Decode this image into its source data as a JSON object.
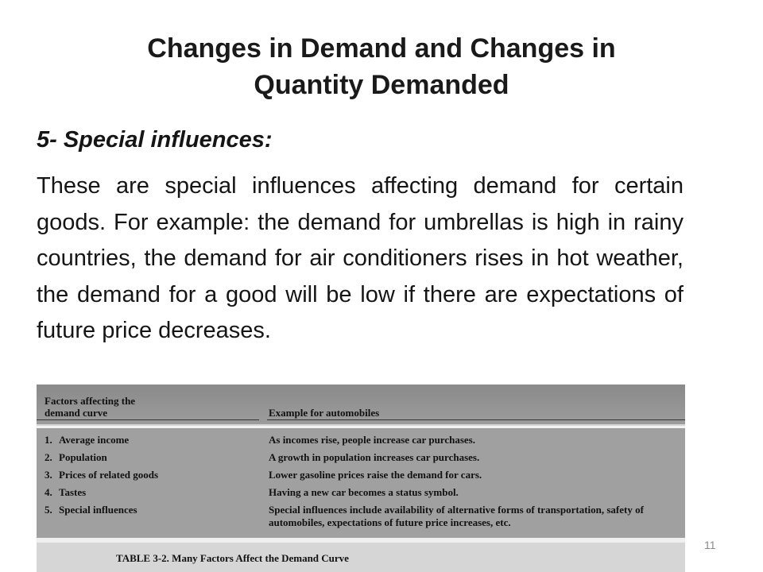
{
  "slide": {
    "title_line1": "Changes in Demand and Changes in",
    "title_line2": "Quantity Demanded",
    "subheading": "5- Special influences:",
    "body": "These are special influences affecting demand for certain goods. For example: the demand for umbrellas is high in rainy countries, the demand for air conditioners rises in hot weather, the demand for a good will be low if there are expectations of future price decreases.",
    "page_number": "11"
  },
  "table": {
    "header_factor_line1": "Factors affecting the",
    "header_factor_line2": "demand curve",
    "header_example": "Example for automobiles",
    "rows": [
      {
        "num": "1.",
        "factor": "Average income",
        "example": "As incomes rise, people increase car purchases."
      },
      {
        "num": "2.",
        "factor": "Population",
        "example": "A growth in population increases car purchases."
      },
      {
        "num": "3.",
        "factor": "Prices of related goods",
        "example": "Lower gasoline prices raise the demand for cars."
      },
      {
        "num": "4.",
        "factor": "Tastes",
        "example": "Having a new car becomes a status symbol."
      },
      {
        "num": "5.",
        "factor": "Special influences",
        "example": "Special influences include availability of alternative forms of transportation, safety of automobiles, expectations of future price increases, etc."
      }
    ],
    "caption": "TABLE 3-2. Many Factors Affect the Demand Curve"
  }
}
